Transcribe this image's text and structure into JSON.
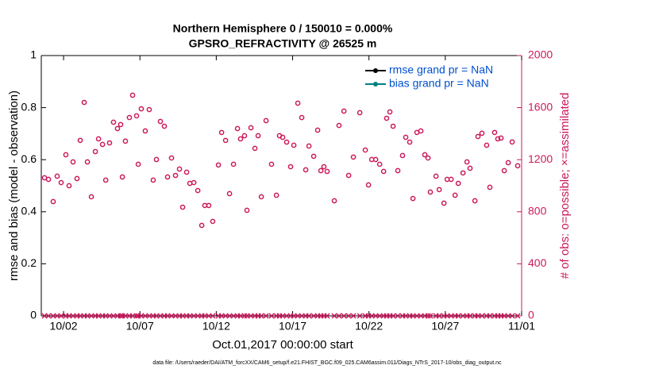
{
  "chart_data": {
    "type": "scatter",
    "title": [
      "Northern Hemisphere 0 / 150010 = 0.000%",
      "GPSRO_REFRACTIVITY @ 26525 m"
    ],
    "xlabel": "Oct.01,2017 00:00:00 start",
    "ylabel": "rmse and bias (model - observation)",
    "y2label": "# of obs: o=possible; ×=assimilated",
    "footnote": "data file: /Users/raeder/DAI/ATM_forcXX/CAM6_setup/f.e21.FHIST_BGC.f09_025.CAM6assim.011/Diags_NTrS_2017-10/obs_diag_output.nc",
    "legend_position": "northeast",
    "legend": [
      {
        "label": "rmse grand pr = NaN",
        "color": "#000000"
      },
      {
        "label": "bias grand pr = NaN",
        "color": "#008080"
      }
    ],
    "xlim": [
      -0.46,
      31
    ],
    "xticks": [
      {
        "value": 1,
        "label": "10/02"
      },
      {
        "value": 6,
        "label": "10/07"
      },
      {
        "value": 11,
        "label": "10/12"
      },
      {
        "value": 16,
        "label": "10/17"
      },
      {
        "value": 21,
        "label": "10/22"
      },
      {
        "value": 26,
        "label": "10/27"
      },
      {
        "value": 31,
        "label": "11/01"
      }
    ],
    "ylim": [
      0,
      1
    ],
    "yticks": [
      0,
      0.2,
      0.4,
      0.6,
      0.8,
      1
    ],
    "y2lim": [
      0,
      2000
    ],
    "y2ticks": [
      0,
      400,
      800,
      1200,
      1600,
      2000
    ],
    "y2color": "#cc1a5c",
    "x": [
      -0.25,
      0.01,
      0.32,
      0.58,
      0.84,
      1.15,
      1.36,
      1.62,
      1.88,
      2.09,
      2.35,
      2.56,
      2.82,
      3.08,
      3.29,
      3.55,
      3.76,
      4.01,
      4.27,
      4.53,
      4.74,
      4.85,
      5.05,
      5.31,
      5.52,
      5.78,
      5.89,
      6.09,
      6.35,
      6.61,
      6.87,
      7.08,
      7.34,
      7.6,
      7.81,
      8.07,
      8.33,
      8.59,
      8.8,
      9.06,
      9.27,
      9.53,
      9.79,
      10.05,
      10.25,
      10.51,
      10.77,
      11.14,
      11.35,
      11.61,
      11.87,
      12.13,
      12.39,
      12.59,
      12.85,
      13.01,
      13.27,
      13.53,
      13.74,
      13.95,
      14.26,
      14.62,
      14.94,
      15.14,
      15.35,
      15.61,
      15.87,
      16.08,
      16.34,
      16.6,
      16.86,
      17.07,
      17.38,
      17.64,
      17.85,
      18.05,
      18.26,
      18.73,
      19.04,
      19.36,
      19.67,
      19.98,
      20.4,
      20.76,
      20.97,
      21.18,
      21.44,
      21.7,
      21.96,
      22.16,
      22.37,
      22.58,
      22.89,
      23.2,
      23.41,
      23.67,
      23.88,
      24.14,
      24.4,
      24.66,
      24.87,
      25.02,
      25.39,
      25.6,
      25.91,
      26.12,
      26.38,
      26.64,
      26.85,
      27.16,
      27.42,
      27.62,
      27.94,
      28.14,
      28.4,
      28.71,
      28.92,
      29.23,
      29.44,
      29.65,
      29.86,
      30.12,
      30.38,
      30.74
    ],
    "possible": {
      "axis": "y2",
      "color": "#cc1a5c",
      "marker": "o",
      "values": [
        1061,
        1049,
        878,
        1073,
        1024,
        1238,
        1000,
        1183,
        1055,
        1348,
        1640,
        1183,
        915,
        1262,
        1360,
        1317,
        1043,
        1329,
        1488,
        1439,
        1470,
        1067,
        1342,
        1524,
        1695,
        1537,
        1165,
        1591,
        1421,
        1585,
        1043,
        1201,
        1494,
        1457,
        1067,
        1213,
        1079,
        1128,
        835,
        1104,
        1018,
        1024,
        963,
        695,
        848,
        848,
        726,
        1159,
        1409,
        1348,
        939,
        1165,
        1439,
        1360,
        1384,
        811,
        1445,
        1287,
        1384,
        915,
        1500,
        1165,
        927,
        1384,
        1372,
        1335,
        1146,
        1311,
        1634,
        1524,
        1122,
        1305,
        1226,
        1427,
        1116,
        1146,
        1110,
        884,
        1463,
        1573,
        1079,
        1220,
        1561,
        1274,
        1006,
        1201,
        1201,
        1165,
        1110,
        1518,
        1567,
        1457,
        1116,
        1232,
        1372,
        1335,
        902,
        1409,
        1421,
        1238,
        1213,
        951,
        1073,
        970,
        866,
        1049,
        1049,
        927,
        1018,
        1098,
        1183,
        1134,
        884,
        1378,
        1403,
        1311,
        988,
        1409,
        1360,
        1366,
        1116,
        1177,
        1336,
        1153
      ]
    },
    "assimilated": {
      "axis": "y2",
      "color": "#cc1a5c",
      "marker": "x",
      "values": [
        0,
        0,
        0,
        0,
        0,
        0,
        0,
        0,
        0,
        0,
        0,
        0,
        0,
        0,
        0,
        0,
        0,
        0,
        0,
        0,
        0,
        0,
        0,
        0,
        0,
        0,
        0,
        0,
        0,
        0,
        0,
        0,
        0,
        0,
        0,
        0,
        0,
        0,
        0,
        0,
        0,
        0,
        0,
        0,
        0,
        0,
        0,
        0,
        0,
        0,
        0,
        0,
        0,
        0,
        0,
        0,
        0,
        0,
        0,
        0,
        0,
        0,
        0,
        0,
        0,
        0,
        0,
        0,
        0,
        0,
        0,
        0,
        0,
        0,
        0,
        0,
        0,
        0,
        0,
        0,
        0,
        0,
        0,
        0,
        0,
        0,
        0,
        0,
        0,
        0,
        0,
        0,
        0,
        0,
        0,
        0,
        0,
        0,
        0,
        0,
        0,
        0,
        0,
        0,
        0,
        0,
        0,
        0,
        0,
        0,
        0,
        0,
        0,
        0,
        0,
        0,
        0,
        0,
        0,
        0,
        0,
        0,
        0,
        0
      ]
    }
  }
}
